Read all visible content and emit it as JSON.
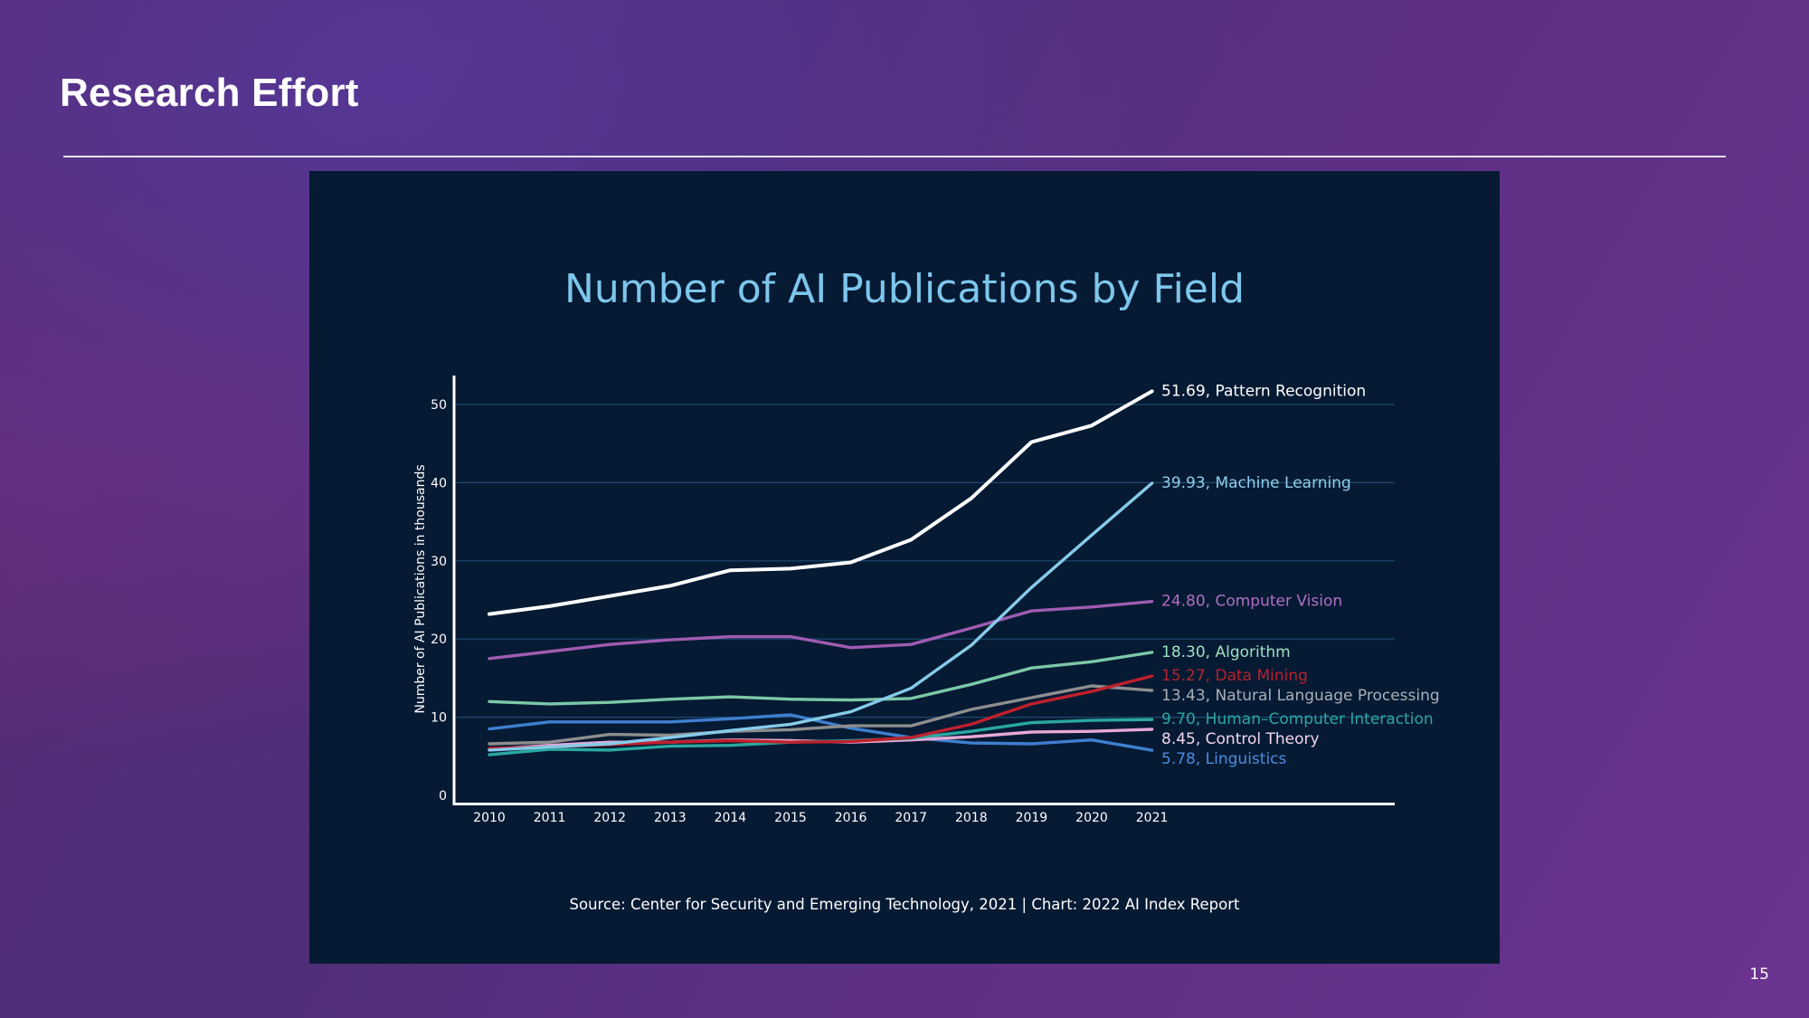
{
  "slide": {
    "title": "Research Effort",
    "page_number": "15"
  },
  "chart_data": {
    "type": "line",
    "title": "Number of AI Publications by Field",
    "xlabel": "",
    "ylabel": "Number of AI Publications in thousands",
    "source": "Source: Center for Security and Emerging Technology, 2021 | Chart: 2022 AI Index Report",
    "x": [
      2010,
      2011,
      2012,
      2013,
      2014,
      2015,
      2016,
      2017,
      2018,
      2019,
      2020,
      2021
    ],
    "x_tick_labels": [
      "2010",
      "2011",
      "2012",
      "2013",
      "2014",
      "2015",
      "2016",
      "2017",
      "2018",
      "2019",
      "2020",
      "2021"
    ],
    "ylim": [
      0,
      55
    ],
    "y_ticks": [
      0,
      10,
      20,
      30,
      40,
      50
    ],
    "y_tick_labels": [
      "0",
      "10",
      "20",
      "30",
      "40",
      "50"
    ],
    "grid": true,
    "legend": "end-of-line labels",
    "series": [
      {
        "name": "Pattern Recognition",
        "end_label": "51.69, Pattern Recognition",
        "color": "#ffffff",
        "label_color": "#ffffff",
        "values": [
          23.2,
          24.2,
          25.5,
          26.8,
          28.8,
          29.0,
          29.8,
          32.7,
          38.0,
          45.2,
          47.3,
          51.69
        ]
      },
      {
        "name": "Machine Learning",
        "end_label": "39.93, Machine Learning",
        "color": "#86cbea",
        "label_color": "#8fd0ee",
        "values": [
          5.8,
          6.2,
          6.6,
          7.4,
          8.3,
          9.1,
          10.7,
          13.7,
          19.2,
          26.6,
          33.3,
          39.93
        ]
      },
      {
        "name": "Computer Vision",
        "end_label": "24.80, Computer Vision",
        "color": "#a05cb2",
        "label_color": "#b06fc4",
        "values": [
          17.5,
          18.4,
          19.3,
          19.9,
          20.3,
          20.3,
          18.9,
          19.3,
          21.4,
          23.6,
          24.1,
          24.8
        ]
      },
      {
        "name": "Algorithm",
        "end_label": "18.30, Algorithm",
        "color": "#7cc8a8",
        "label_color": "#9ee0c0",
        "values": [
          12.0,
          11.7,
          11.9,
          12.3,
          12.6,
          12.3,
          12.2,
          12.4,
          14.2,
          16.3,
          17.1,
          18.3
        ]
      },
      {
        "name": "Data Mining",
        "end_label": "15.27, Data Mining",
        "color": "#c0202c",
        "label_color": "#b5232b",
        "values": [
          6.0,
          6.2,
          6.5,
          6.8,
          7.0,
          6.8,
          6.9,
          7.4,
          9.1,
          11.7,
          13.3,
          15.27
        ]
      },
      {
        "name": "Natural Language Processing",
        "end_label": "13.43, Natural Language Processing",
        "color": "#8e8e8e",
        "label_color": "#a8aeb6",
        "values": [
          6.6,
          6.8,
          7.8,
          7.7,
          8.2,
          8.4,
          8.9,
          8.9,
          11.0,
          12.5,
          14.0,
          13.43
        ]
      },
      {
        "name": "Human-Computer Interaction",
        "end_label": "9.70, Human–Computer Interaction",
        "color": "#2aa7a1",
        "label_color": "#2aa7a1",
        "values": [
          5.2,
          5.9,
          5.8,
          6.3,
          6.4,
          6.8,
          7.0,
          7.3,
          8.2,
          9.3,
          9.6,
          9.7
        ]
      },
      {
        "name": "Control Theory",
        "end_label": "8.45, Control Theory",
        "color": "#e7a8d6",
        "label_color": "#f3d7ee",
        "values": [
          5.9,
          6.4,
          6.8,
          6.8,
          7.1,
          7.0,
          6.8,
          7.1,
          7.5,
          8.1,
          8.2,
          8.45
        ]
      },
      {
        "name": "Linguistics",
        "end_label": "5.78, Linguistics",
        "color": "#3f7fd0",
        "label_color": "#4a8ee0",
        "values": [
          8.5,
          9.4,
          9.4,
          9.4,
          9.8,
          10.3,
          8.6,
          7.4,
          6.7,
          6.6,
          7.1,
          5.78
        ]
      }
    ]
  }
}
